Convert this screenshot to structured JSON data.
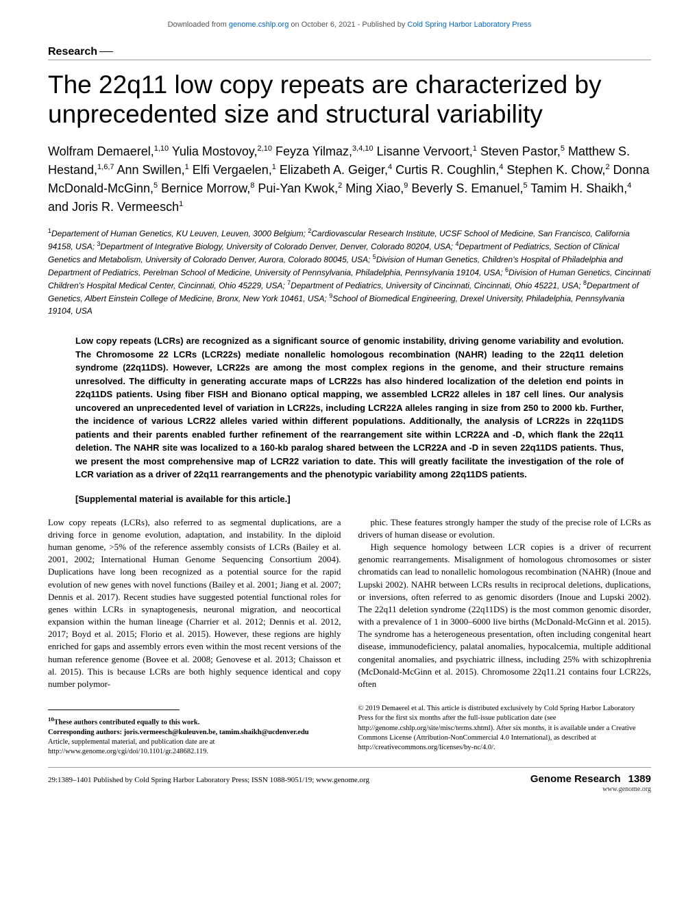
{
  "banner": {
    "prefix": "Downloaded from ",
    "link1": "genome.cshlp.org",
    "mid": " on October 6, 2021 - Published by ",
    "link2": "Cold Spring Harbor Laboratory Press"
  },
  "section": "Research",
  "title": "The 22q11 low copy repeats are characterized by unprecedented size and structural variability",
  "authors": "Wolfram Demaerel,<sup>1,10</sup> Yulia Mostovoy,<sup>2,10</sup> Feyza Yilmaz,<sup>3,4,10</sup> Lisanne Vervoort,<sup>1</sup> Steven Pastor,<sup>5</sup> Matthew S. Hestand,<sup>1,6,7</sup> Ann Swillen,<sup>1</sup> Elfi Vergaelen,<sup>1</sup> Elizabeth A. Geiger,<sup>4</sup> Curtis R. Coughlin,<sup>4</sup> Stephen K. Chow,<sup>2</sup> Donna McDonald-McGinn,<sup>5</sup> Bernice Morrow,<sup>8</sup> Pui-Yan Kwok,<sup>2</sup> Ming Xiao,<sup>9</sup> Beverly S. Emanuel,<sup>5</sup> Tamim H. Shaikh,<sup>4</sup> and Joris R. Vermeesch<sup>1</sup>",
  "affiliations": "<sup>1</sup>Departement of Human Genetics, KU Leuven, Leuven, 3000 Belgium; <sup>2</sup>Cardiovascular Research Institute, UCSF School of Medicine, San Francisco, California 94158, USA; <sup>3</sup>Department of Integrative Biology, University of Colorado Denver, Denver, Colorado 80204, USA; <sup>4</sup>Department of Pediatrics, Section of Clinical Genetics and Metabolism, University of Colorado Denver, Aurora, Colorado 80045, USA; <sup>5</sup>Division of Human Genetics, Children's Hospital of Philadelphia and Department of Pediatrics, Perelman School of Medicine, University of Pennsylvania, Philadelphia, Pennsylvania 19104, USA; <sup>6</sup>Division of Human Genetics, Cincinnati Children's Hospital Medical Center, Cincinnati, Ohio 45229, USA; <sup>7</sup>Department of Pediatrics, University of Cincinnati, Cincinnati, Ohio 45221, USA; <sup>8</sup>Department of Genetics, Albert Einstein College of Medicine, Bronx, New York 10461, USA; <sup>9</sup>School of Biomedical Engineering, Drexel University, Philadelphia, Pennsylvania 19104, USA",
  "abstract": "Low copy repeats (LCRs) are recognized as a significant source of genomic instability, driving genome variability and evolution. The Chromosome 22 LCRs (LCR22s) mediate nonallelic homologous recombination (NAHR) leading to the 22q11 deletion syndrome (22q11DS). However, LCR22s are among the most complex regions in the genome, and their structure remains unresolved. The difficulty in generating accurate maps of LCR22s has also hindered localization of the deletion end points in 22q11DS patients. Using fiber FISH and Bionano optical mapping, we assembled LCR22 alleles in 187 cell lines. Our analysis uncovered an unprecedented level of variation in LCR22s, including LCR22A alleles ranging in size from 250 to 2000 kb. Further, the incidence of various LCR22 alleles varied within different populations. Additionally, the analysis of LCR22s in 22q11DS patients and their parents enabled further refinement of the rearrangement site within LCR22A and -D, which flank the 22q11 deletion. The NAHR site was localized to a 160-kb paralog shared between the LCR22A and -D in seven 22q11DS patients. Thus, we present the most comprehensive map of LCR22 variation to date. This will greatly facilitate the investigation of the role of LCR variation as a driver of 22q11 rearrangements and the phenotypic variability among 22q11DS patients.",
  "supplemental": "[Supplemental material is available for this article.]",
  "body": {
    "p1": "Low copy repeats (LCRs), also referred to as segmental duplications, are a driving force in genome evolution, adaptation, and instability. In the diploid human genome, >5% of the reference assembly consists of LCRs (Bailey et al. 2001, 2002; International Human Genome Sequencing Consortium 2004). Duplications have long been recognized as a potential source for the rapid evolution of new genes with novel functions (Bailey et al. 2001; Jiang et al. 2007; Dennis et al. 2017). Recent studies have suggested potential functional roles for genes within LCRs in synaptogenesis, neuronal migration, and neocortical expansion within the human lineage (Charrier et al. 2012; Dennis et al. 2012, 2017; Boyd et al. 2015; Florio et al. 2015). However, these regions are highly enriched for gaps and assembly errors even within the most recent versions of the human reference genome (Bovee et al. 2008; Genovese et al. 2013; Chaisson et al. 2015). This is because LCRs are both highly sequence identical and copy number polymor-",
    "p2": "phic. These features strongly hamper the study of the precise role of LCRs as drivers of human disease or evolution.",
    "p3": "High sequence homology between LCR copies is a driver of recurrent genomic rearrangements. Misalignment of homologous chromosomes or sister chromatids can lead to nonallelic homologous recombination (NAHR) (Inoue and Lupski 2002). NAHR between LCRs results in reciprocal deletions, duplications, or inversions, often referred to as genomic disorders (Inoue and Lupski 2002). The 22q11 deletion syndrome (22q11DS) is the most common genomic disorder, with a prevalence of 1 in 3000–6000 live births (McDonald-McGinn et al. 2015). The syndrome has a heterogeneous presentation, often including congenital heart disease, immunodeficiency, palatal anomalies, hypocalcemia, multiple additional congenital anomalies, and psychiatric illness, including 25% with schizophrenia (McDonald-McGinn et al. 2015). Chromosome 22q11.21 contains four LCR22s, often"
  },
  "footer": {
    "note10": "<sup>10</sup>These authors contributed equally to this work.",
    "corresponding": "Corresponding authors: joris.vermeesch@kuleuven.be, tamim.shaikh@ucdenver.edu",
    "article_info": "Article, supplemental material, and publication date are at http://www.genome.org/cgi/doi/10.1101/gr.248682.119.",
    "copyright": "© 2019 Demaerel et al.   This article is distributed exclusively by Cold Spring Harbor Laboratory Press for the first six months after the full-issue publication date (see http://genome.cshlp.org/site/misc/terms.xhtml). After six months, it is available under a Creative Commons License (Attribution-NonCommercial 4.0 International), as described at http://creativecommons.org/licenses/by-nc/4.0/."
  },
  "page_footer": {
    "citation": "29:1389–1401 Published by Cold Spring Harbor Laboratory Press; ISSN 1088-9051/19; www.genome.org",
    "journal": "Genome Research",
    "page": "1389",
    "url": "www.genome.org"
  }
}
